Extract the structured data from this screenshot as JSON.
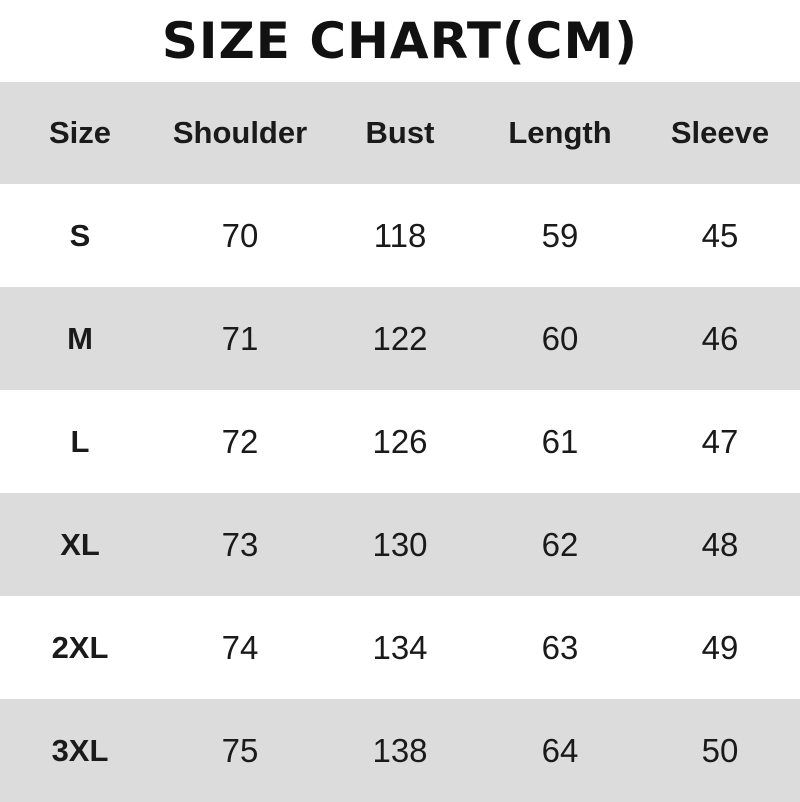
{
  "title": "SIZE CHART(CM)",
  "headers": [
    "Size",
    "Shoulder",
    "Bust",
    "Length",
    "Sleeve"
  ],
  "rows": [
    [
      "S",
      "70",
      "118",
      "59",
      "45"
    ],
    [
      "M",
      "71",
      "122",
      "60",
      "46"
    ],
    [
      "L",
      "72",
      "126",
      "61",
      "47"
    ],
    [
      "XL",
      "73",
      "130",
      "62",
      "48"
    ],
    [
      "2XL",
      "74",
      "134",
      "63",
      "49"
    ],
    [
      "3XL",
      "75",
      "138",
      "64",
      "50"
    ]
  ],
  "colors": {
    "stripe": "#dcdcdc",
    "text": "#1a1a1a"
  }
}
